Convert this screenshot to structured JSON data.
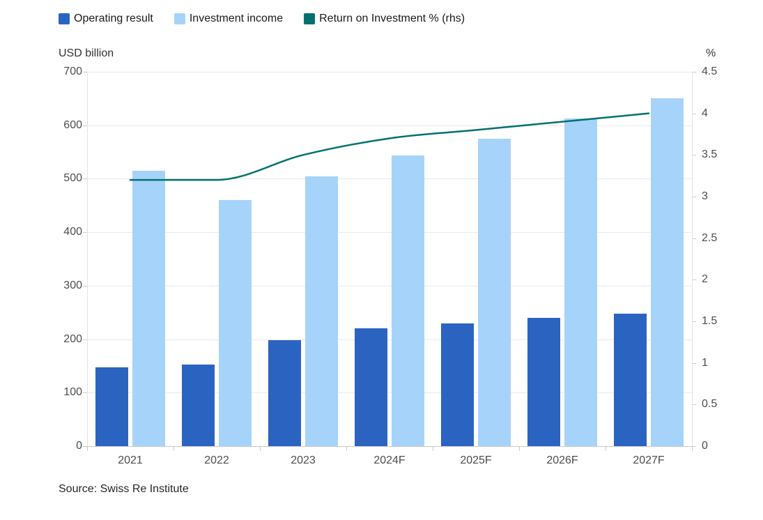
{
  "legend": {
    "items": [
      {
        "label": "Operating result",
        "color": "#2b63c1",
        "type": "bar"
      },
      {
        "label": "Investment income",
        "color": "#a6d3fa",
        "type": "bar"
      },
      {
        "label": "Return on Investment % (rhs)",
        "color": "#017170",
        "type": "line"
      }
    ]
  },
  "left_axis_title": "USD billion",
  "right_axis_title": "%",
  "source": "Source: Swiss Re Institute",
  "chart_data": {
    "type": "bar+line",
    "categories": [
      "2021",
      "2022",
      "2023",
      "2024F",
      "2025F",
      "2026F",
      "2027F"
    ],
    "series": [
      {
        "name": "Operating result",
        "type": "bar",
        "axis": "left",
        "color": "#2b63c1",
        "values": [
          147,
          152,
          198,
          220,
          230,
          240,
          248
        ]
      },
      {
        "name": "Investment income",
        "type": "bar",
        "axis": "left",
        "color": "#a6d3fa",
        "values": [
          515,
          460,
          505,
          543,
          575,
          613,
          650
        ]
      },
      {
        "name": "Return on Investment % (rhs)",
        "type": "line",
        "axis": "right",
        "color": "#017170",
        "values": [
          3.2,
          3.2,
          3.5,
          3.7,
          3.8,
          3.9,
          4.0
        ]
      }
    ],
    "left_axis": {
      "label": "USD billion",
      "min": 0,
      "max": 700,
      "tick_step": 100
    },
    "right_axis": {
      "label": "%",
      "min": 0,
      "max": 4.5,
      "tick_step": 0.5
    },
    "grid": true,
    "legend_position": "top"
  }
}
